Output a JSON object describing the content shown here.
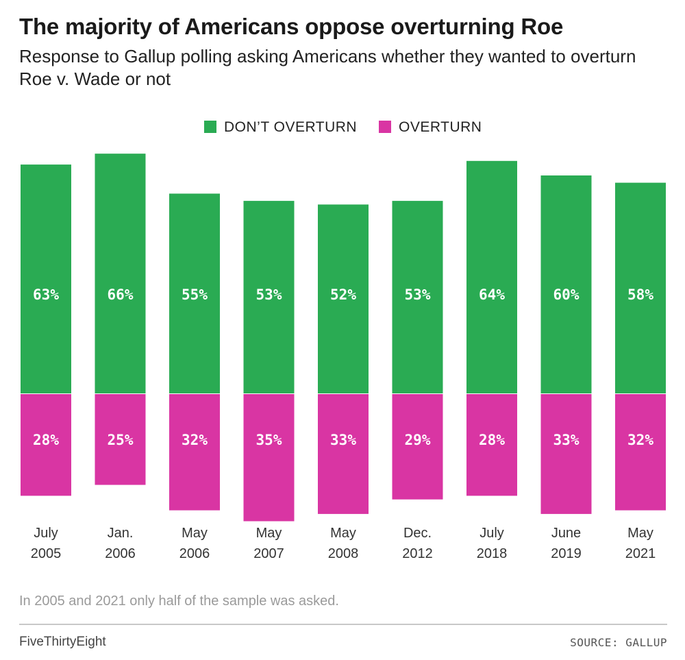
{
  "header": {
    "title": "The majority of Americans oppose overturning Roe",
    "subtitle": "Response to Gallup polling asking Americans whether they wanted to overturn Roe v. Wade or not"
  },
  "chart_data": {
    "type": "bar",
    "stacked_diverging": true,
    "categories": [
      [
        "July",
        "2005"
      ],
      [
        "Jan.",
        "2006"
      ],
      [
        "May",
        "2006"
      ],
      [
        "May",
        "2007"
      ],
      [
        "May",
        "2008"
      ],
      [
        "Dec.",
        "2012"
      ],
      [
        "July",
        "2018"
      ],
      [
        "June",
        "2019"
      ],
      [
        "May",
        "2021"
      ]
    ],
    "series": [
      {
        "name": "DON’T OVERTURN",
        "color": "#2aab53",
        "values": [
          63,
          66,
          55,
          53,
          52,
          53,
          64,
          60,
          58
        ]
      },
      {
        "name": "OVERTURN",
        "color": "#d935a3",
        "values": [
          28,
          25,
          32,
          35,
          33,
          29,
          28,
          33,
          32
        ]
      }
    ],
    "value_suffix": "%",
    "legend_position": "top-center",
    "grid": false
  },
  "footer": {
    "note": "In 2005 and 2021 only half of the sample was asked.",
    "brand": "FiveThirtyEight",
    "source": "SOURCE: GALLUP"
  }
}
